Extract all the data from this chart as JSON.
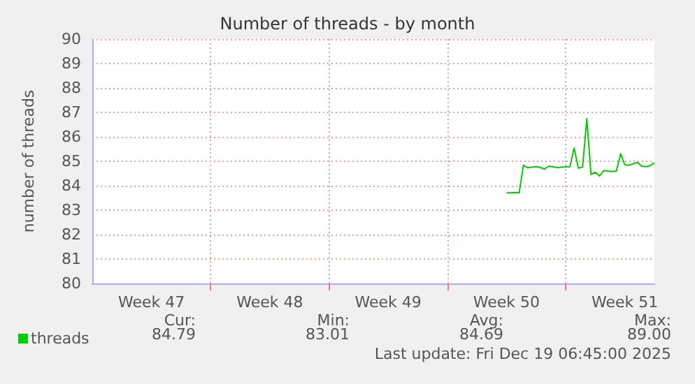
{
  "chart_data": {
    "type": "line",
    "title": "Number of threads - by month",
    "ylabel": "number of threads",
    "categories": [
      null,
      null,
      null,
      null,
      null,
      null,
      null,
      null,
      null,
      null,
      null,
      null,
      null,
      null,
      "Week 47",
      null,
      null,
      null,
      null,
      null,
      null,
      null,
      null,
      null,
      null,
      null,
      null,
      null,
      null,
      null,
      null,
      null,
      null,
      null,
      null,
      null,
      null,
      null,
      null,
      null,
      null,
      null,
      "Week 48",
      null,
      null,
      null,
      null,
      null,
      null,
      null,
      null,
      null,
      null,
      null,
      null,
      null,
      null,
      null,
      null,
      null,
      null,
      null,
      null,
      null,
      null,
      null,
      null,
      null,
      null,
      null,
      "Week 49",
      null,
      null,
      null,
      null,
      null,
      null,
      null,
      null,
      null,
      null,
      null,
      null,
      null,
      null,
      null,
      null,
      null,
      null,
      null,
      null,
      null,
      null,
      null,
      null,
      null,
      null,
      null,
      "Week 50",
      null,
      null,
      null,
      null,
      null,
      null,
      null,
      null,
      null,
      null,
      null,
      null,
      null,
      null,
      null,
      null,
      null,
      null,
      null,
      null,
      null,
      null,
      null,
      null,
      null,
      null,
      null,
      "Week 51",
      null,
      null,
      null,
      null,
      null,
      null,
      null
    ],
    "series": [
      {
        "name": "threads",
        "color": "#00cc00",
        "values": [
          null,
          null,
          null,
          null,
          null,
          null,
          null,
          null,
          null,
          null,
          null,
          null,
          null,
          null,
          null,
          null,
          null,
          null,
          null,
          null,
          null,
          null,
          null,
          null,
          null,
          null,
          null,
          null,
          null,
          null,
          null,
          null,
          null,
          null,
          null,
          null,
          null,
          null,
          null,
          null,
          null,
          null,
          null,
          null,
          null,
          null,
          null,
          null,
          null,
          null,
          null,
          null,
          null,
          null,
          null,
          null,
          null,
          null,
          null,
          null,
          null,
          null,
          null,
          null,
          null,
          null,
          null,
          null,
          null,
          null,
          null,
          null,
          null,
          null,
          null,
          null,
          null,
          null,
          null,
          null,
          null,
          null,
          null,
          null,
          null,
          null,
          null,
          null,
          null,
          null,
          null,
          null,
          null,
          null,
          null,
          null,
          null,
          null,
          83.71,
          83.71,
          83.72,
          83.71,
          84.84,
          84.74,
          84.76,
          84.78,
          84.75,
          84.68,
          84.8,
          84.77,
          84.74,
          84.76,
          84.77,
          84.78,
          85.54,
          84.72,
          84.76,
          86.74,
          84.46,
          84.55,
          84.4,
          84.62,
          84.6,
          84.58,
          84.6,
          85.31,
          84.85,
          84.84,
          84.9,
          84.95,
          84.8,
          84.78,
          84.82,
          84.94
        ]
      }
    ],
    "ylim": [
      80,
      90
    ],
    "yticks": [
      80,
      81,
      82,
      83,
      84,
      85,
      86,
      87,
      88,
      89,
      90
    ],
    "grid": true,
    "legend": "bottom left",
    "marker": "none",
    "line_style": "solid",
    "annotations": [
      "Cur:",
      "Min:",
      "Avg:",
      "Max:",
      "84.79",
      "83.01",
      "84.69",
      "89.00",
      "Last update: Fri Dec 19 06:45:00 2025"
    ]
  }
}
